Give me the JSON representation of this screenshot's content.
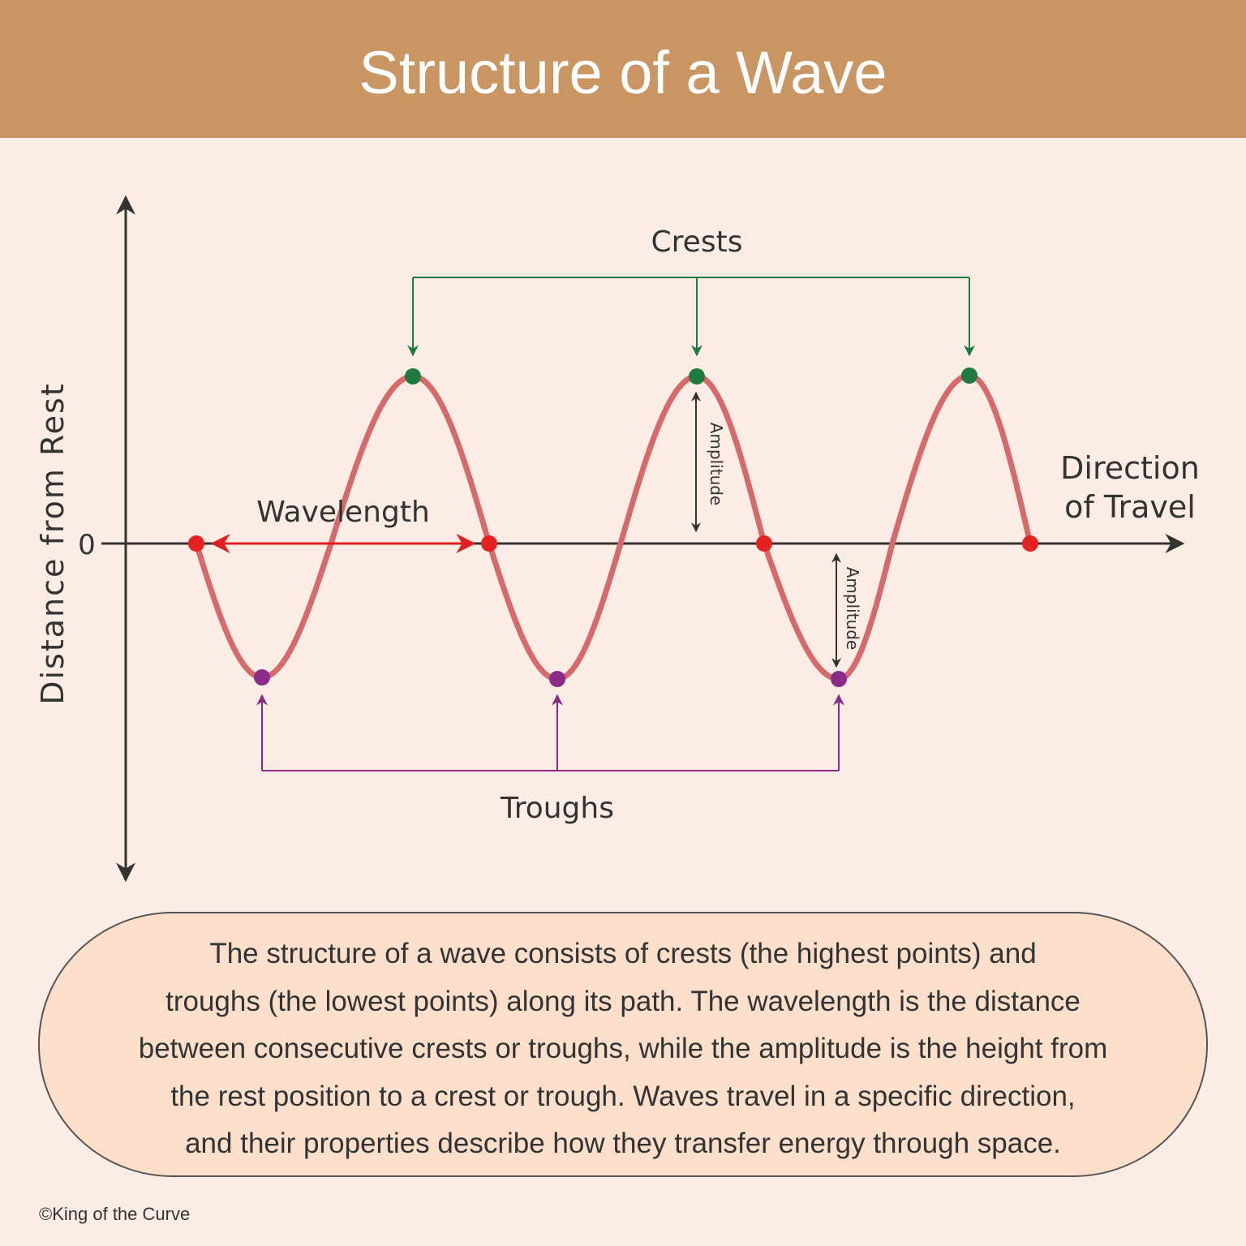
{
  "header": {
    "title": "Structure of a Wave"
  },
  "diagram": {
    "y_axis_label": "Distance from Rest",
    "zero_label": "0",
    "x_axis_label": [
      "Direction",
      "of Travel"
    ],
    "crests_label": "Crests",
    "troughs_label": "Troughs",
    "wavelength_label": "Wavelength",
    "amplitude_labels": [
      "Amplitude",
      "Amplitude"
    ]
  },
  "description": {
    "lines": [
      "The structure of a wave consists of crests (the highest points) and",
      "troughs (the lowest points) along its path. The wavelength is the distance",
      "between consecutive crests or troughs, while the amplitude is the height from",
      "the rest position to a crest or trough. Waves travel in a specific direction,",
      "and their properties describe how they transfer energy through space."
    ]
  },
  "footer": {
    "credit": "©King of the Curve"
  }
}
